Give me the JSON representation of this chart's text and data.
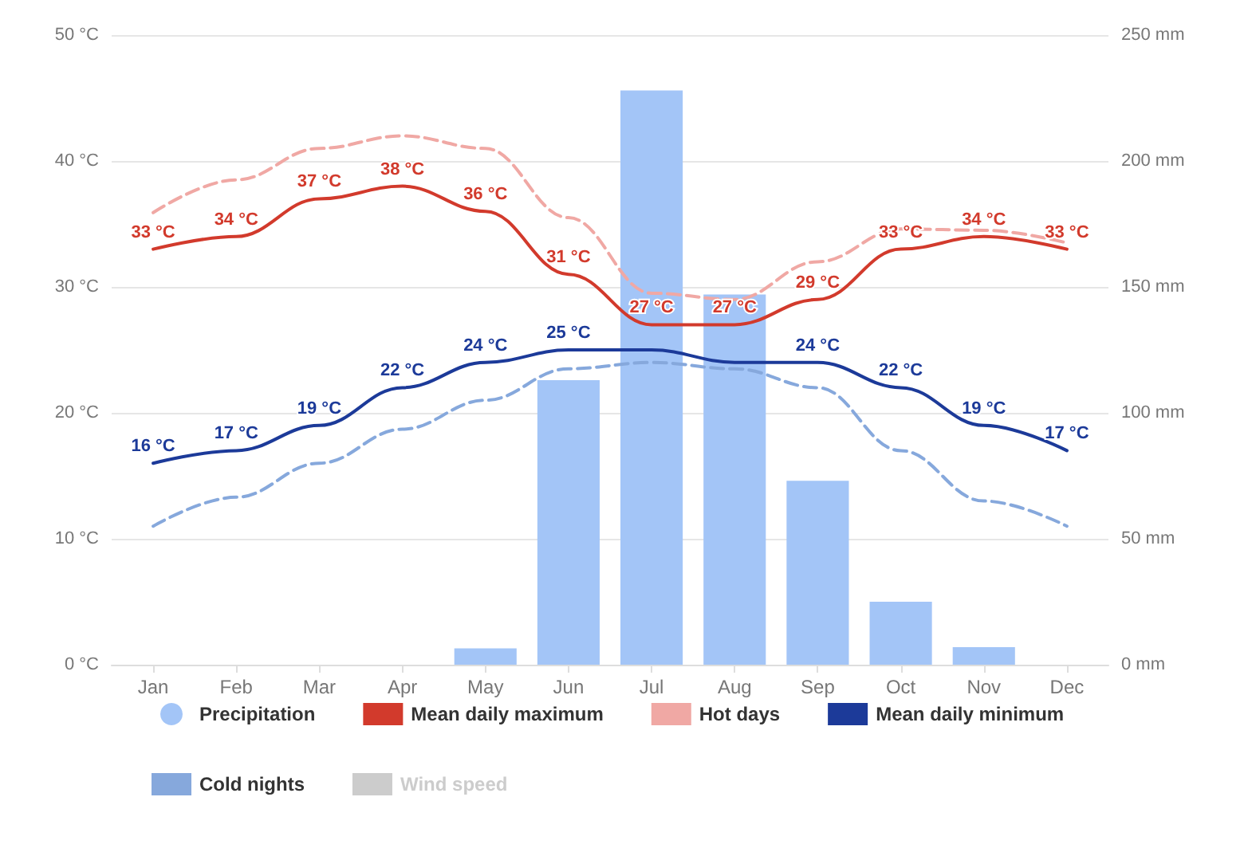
{
  "chart_data": {
    "type": "line",
    "categories": [
      "Jan",
      "Feb",
      "Mar",
      "Apr",
      "May",
      "Jun",
      "Jul",
      "Aug",
      "Sep",
      "Oct",
      "Nov",
      "Dec"
    ],
    "ylim": [
      0,
      50
    ],
    "yticks": [
      {
        "value": 0,
        "label": "0 °C"
      },
      {
        "value": 10,
        "label": "10 °C"
      },
      {
        "value": 20,
        "label": "20 °C"
      },
      {
        "value": 30,
        "label": "30 °C"
      },
      {
        "value": 40,
        "label": "40 °C"
      },
      {
        "value": 50,
        "label": "50 °C"
      }
    ],
    "y2lim": [
      0,
      250
    ],
    "y2ticks": [
      {
        "value": 0,
        "label": "0 mm"
      },
      {
        "value": 50,
        "label": "50 mm"
      },
      {
        "value": 100,
        "label": "100 mm"
      },
      {
        "value": 150,
        "label": "150 mm"
      },
      {
        "value": 200,
        "label": "200 mm"
      },
      {
        "value": 250,
        "label": "250 mm"
      }
    ],
    "grid": "y",
    "legend": "bottom",
    "marker": "none",
    "series": [
      {
        "name": "Precipitation",
        "type": "bar",
        "axis": "y2",
        "color": "#a3c5f7",
        "values": [
          0,
          0,
          0,
          0,
          6.5,
          113,
          228,
          147,
          73,
          25,
          7,
          0
        ]
      },
      {
        "name": "Mean daily maximum",
        "color": "#d23a2c",
        "line_style": "solid",
        "values": [
          33,
          34,
          37,
          38,
          36,
          31,
          27,
          27,
          29,
          33,
          34,
          33
        ],
        "value_labels": [
          "33 °C",
          "34 °C",
          "37 °C",
          "38 °C",
          "36 °C",
          "31 °C",
          "27 °C",
          "27 °C",
          "29 °C",
          "33 °C",
          "34 °C",
          "33 °C"
        ]
      },
      {
        "name": "Hot days",
        "color": "#f0a8a4",
        "line_style": "dashed",
        "values": [
          35.9,
          38.5,
          41,
          42,
          41,
          35.5,
          29.5,
          29,
          32,
          34.6,
          34.5,
          33.5
        ]
      },
      {
        "name": "Mean daily minimum",
        "color": "#1c3a99",
        "line_style": "solid",
        "values": [
          16,
          17,
          19,
          22,
          24,
          25,
          25,
          24,
          24,
          22,
          19,
          17
        ],
        "value_labels": [
          "16 °C",
          "17 °C",
          "19 °C",
          "22 °C",
          "24 °C",
          "25 °C",
          null,
          null,
          "24 °C",
          "22 °C",
          "19 °C",
          "17 °C"
        ]
      },
      {
        "name": "Cold nights",
        "color": "#86a8dc",
        "line_style": "dashed",
        "values": [
          11,
          13.3,
          16,
          18.7,
          21,
          23.5,
          24,
          23.5,
          22,
          17,
          13,
          11
        ]
      },
      {
        "name": "Wind speed",
        "color": "#cccccc",
        "line_style": "solid",
        "values": [
          null,
          null,
          null,
          null,
          null,
          null,
          null,
          null,
          null,
          null,
          null,
          null
        ]
      }
    ]
  }
}
